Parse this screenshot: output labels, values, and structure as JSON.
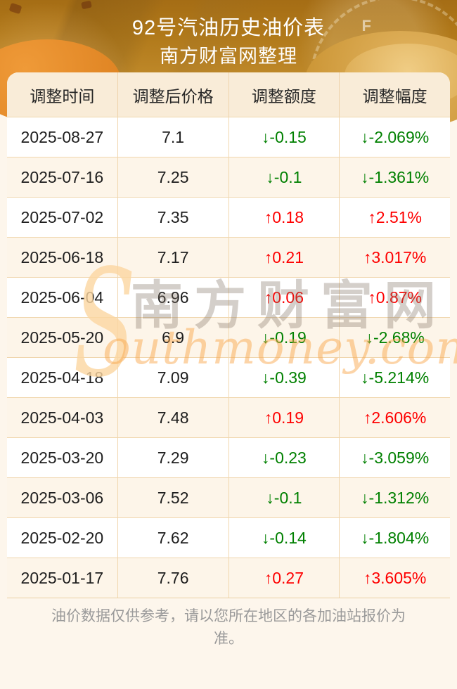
{
  "header": {
    "title_line1": "92号汽油历史油价表",
    "title_line2": "南方财富网整理",
    "gauge_label": "F"
  },
  "chart_data": {
    "type": "table",
    "title": "92号汽油历史油价表",
    "subtitle": "南方财富网整理",
    "columns": [
      "调整时间",
      "调整后价格",
      "调整额度",
      "调整幅度"
    ],
    "rows": [
      [
        "2025-08-27",
        7.1,
        -0.15,
        "-2.069%"
      ],
      [
        "2025-07-16",
        7.25,
        -0.1,
        "-1.361%"
      ],
      [
        "2025-07-02",
        7.35,
        0.18,
        "2.51%"
      ],
      [
        "2025-06-18",
        7.17,
        0.21,
        "3.017%"
      ],
      [
        "2025-06-04",
        6.96,
        0.06,
        "0.87%"
      ],
      [
        "2025-05-20",
        6.9,
        -0.19,
        "-2.68%"
      ],
      [
        "2025-04-18",
        7.09,
        -0.39,
        "-5.214%"
      ],
      [
        "2025-04-03",
        7.48,
        0.19,
        "2.606%"
      ],
      [
        "2025-03-20",
        7.29,
        -0.23,
        "-3.059%"
      ],
      [
        "2025-03-06",
        7.52,
        -0.1,
        "-1.312%"
      ],
      [
        "2025-02-20",
        7.62,
        -0.14,
        "-1.804%"
      ],
      [
        "2025-01-17",
        7.76,
        0.27,
        "3.605%"
      ]
    ]
  },
  "table": {
    "rows": [
      {
        "date": "2025-08-27",
        "price": "7.1",
        "change": "↓-0.15",
        "pct": "↓-2.069%",
        "dir": "down"
      },
      {
        "date": "2025-07-16",
        "price": "7.25",
        "change": "↓-0.1",
        "pct": "↓-1.361%",
        "dir": "down"
      },
      {
        "date": "2025-07-02",
        "price": "7.35",
        "change": "↑0.18",
        "pct": "↑2.51%",
        "dir": "up"
      },
      {
        "date": "2025-06-18",
        "price": "7.17",
        "change": "↑0.21",
        "pct": "↑3.017%",
        "dir": "up"
      },
      {
        "date": "2025-06-04",
        "price": "6.96",
        "change": "↑0.06",
        "pct": "↑0.87%",
        "dir": "up"
      },
      {
        "date": "2025-05-20",
        "price": "6.9",
        "change": "↓-0.19",
        "pct": "↓-2.68%",
        "dir": "down"
      },
      {
        "date": "2025-04-18",
        "price": "7.09",
        "change": "↓-0.39",
        "pct": "↓-5.214%",
        "dir": "down"
      },
      {
        "date": "2025-04-03",
        "price": "7.48",
        "change": "↑0.19",
        "pct": "↑2.606%",
        "dir": "up"
      },
      {
        "date": "2025-03-20",
        "price": "7.29",
        "change": "↓-0.23",
        "pct": "↓-3.059%",
        "dir": "down"
      },
      {
        "date": "2025-03-06",
        "price": "7.52",
        "change": "↓-0.1",
        "pct": "↓-1.312%",
        "dir": "down"
      },
      {
        "date": "2025-02-20",
        "price": "7.62",
        "change": "↓-0.14",
        "pct": "↓-1.804%",
        "dir": "down"
      },
      {
        "date": "2025-01-17",
        "price": "7.76",
        "change": "↑0.27",
        "pct": "↑3.605%",
        "dir": "up"
      }
    ]
  },
  "watermark": {
    "swoosh": "S",
    "cn": "南方财富网",
    "en": "outhmoney.com"
  },
  "footer": {
    "note": "油价数据仅供参考，请以您所在地区的各加油站报价为准。"
  },
  "colors": {
    "up": "#fe0000",
    "down": "#008000",
    "header_gold": "#b07819",
    "table_header_bg": "#f9ecd8",
    "row_alt_bg": "#fdf5e9",
    "border": "#f0d6ad",
    "page_bg": "#fdf6ec",
    "footer_text": "#9a9a9a"
  }
}
